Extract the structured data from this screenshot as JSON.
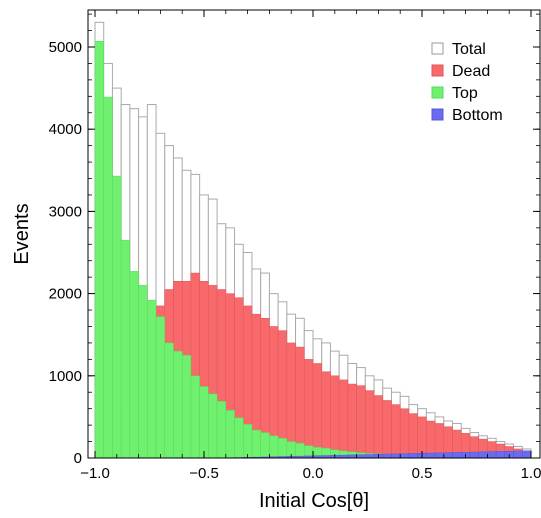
{
  "chart_data": {
    "type": "bar",
    "title": "",
    "xlabel": "Initial Cos[θ]",
    "ylabel": "Events",
    "xlim": [
      -1.0,
      1.0
    ],
    "ylim": [
      0,
      5450
    ],
    "bin_width": 0.04,
    "x_ticks": [
      -1.0,
      -0.5,
      0.0,
      0.5,
      1.0
    ],
    "x_tick_labels": [
      "−1.0",
      "−0.5",
      "0.0",
      "0.5",
      "1.0"
    ],
    "y_ticks": [
      0,
      1000,
      2000,
      3000,
      4000,
      5000
    ],
    "y_tick_labels": [
      "0",
      "1000",
      "2000",
      "3000",
      "4000",
      "5000"
    ],
    "grid": false,
    "legend_position": "top-right",
    "legend": [
      "Total",
      "Dead",
      "Top",
      "Bottom"
    ],
    "colors": {
      "Total": "#ffffff",
      "Total_edge": "#aaaaaa",
      "Dead": "#f8696b",
      "Top": "#6ff06f",
      "Bottom": "#6b6bf0"
    },
    "series": [
      {
        "name": "Total",
        "values": [
          5300,
          4800,
          4500,
          4300,
          4250,
          4150,
          4300,
          3950,
          3800,
          3650,
          3500,
          3450,
          3200,
          3150,
          2850,
          2800,
          2600,
          2500,
          2300,
          2250,
          2000,
          1900,
          1750,
          1700,
          1550,
          1450,
          1400,
          1300,
          1250,
          1150,
          1100,
          1000,
          950,
          850,
          800,
          750,
          650,
          600,
          550,
          500,
          450,
          420,
          360,
          310,
          270,
          240,
          200,
          170,
          140,
          110,
          95,
          80,
          70,
          65
        ]
      },
      {
        "name": "Dead",
        "values": [
          0,
          0,
          200,
          600,
          1050,
          1250,
          1800,
          1850,
          2050,
          2150,
          2150,
          2250,
          2150,
          2100,
          2050,
          2000,
          1950,
          1850,
          1750,
          1700,
          1600,
          1550,
          1400,
          1350,
          1200,
          1150,
          1050,
          1000,
          950,
          900,
          880,
          820,
          760,
          700,
          650,
          600,
          540,
          500,
          450,
          420,
          380,
          340,
          300,
          260,
          230,
          200,
          170,
          140,
          110,
          80,
          60,
          45,
          30,
          20
        ]
      },
      {
        "name": "Top",
        "values": [
          5070,
          4390,
          3430,
          2650,
          2270,
          2100,
          1920,
          1720,
          1400,
          1300,
          1250,
          1000,
          870,
          780,
          690,
          580,
          490,
          410,
          340,
          310,
          270,
          240,
          200,
          180,
          150,
          130,
          120,
          100,
          85,
          75,
          65,
          55,
          50,
          40,
          35,
          30,
          28,
          25,
          22,
          20,
          18,
          16,
          14,
          12,
          10,
          10,
          8,
          8,
          6,
          6,
          5,
          5,
          4,
          4
        ]
      },
      {
        "name": "Bottom",
        "values": [
          0,
          0,
          0,
          0,
          0,
          0,
          0,
          0,
          0,
          0,
          0,
          0,
          0,
          0,
          0,
          0,
          5,
          8,
          10,
          12,
          15,
          18,
          20,
          22,
          25,
          28,
          30,
          32,
          35,
          38,
          40,
          42,
          45,
          48,
          50,
          52,
          55,
          58,
          60,
          62,
          65,
          68,
          70,
          72,
          75,
          78,
          80,
          82,
          85,
          88,
          90,
          92,
          95,
          98
        ]
      }
    ]
  }
}
